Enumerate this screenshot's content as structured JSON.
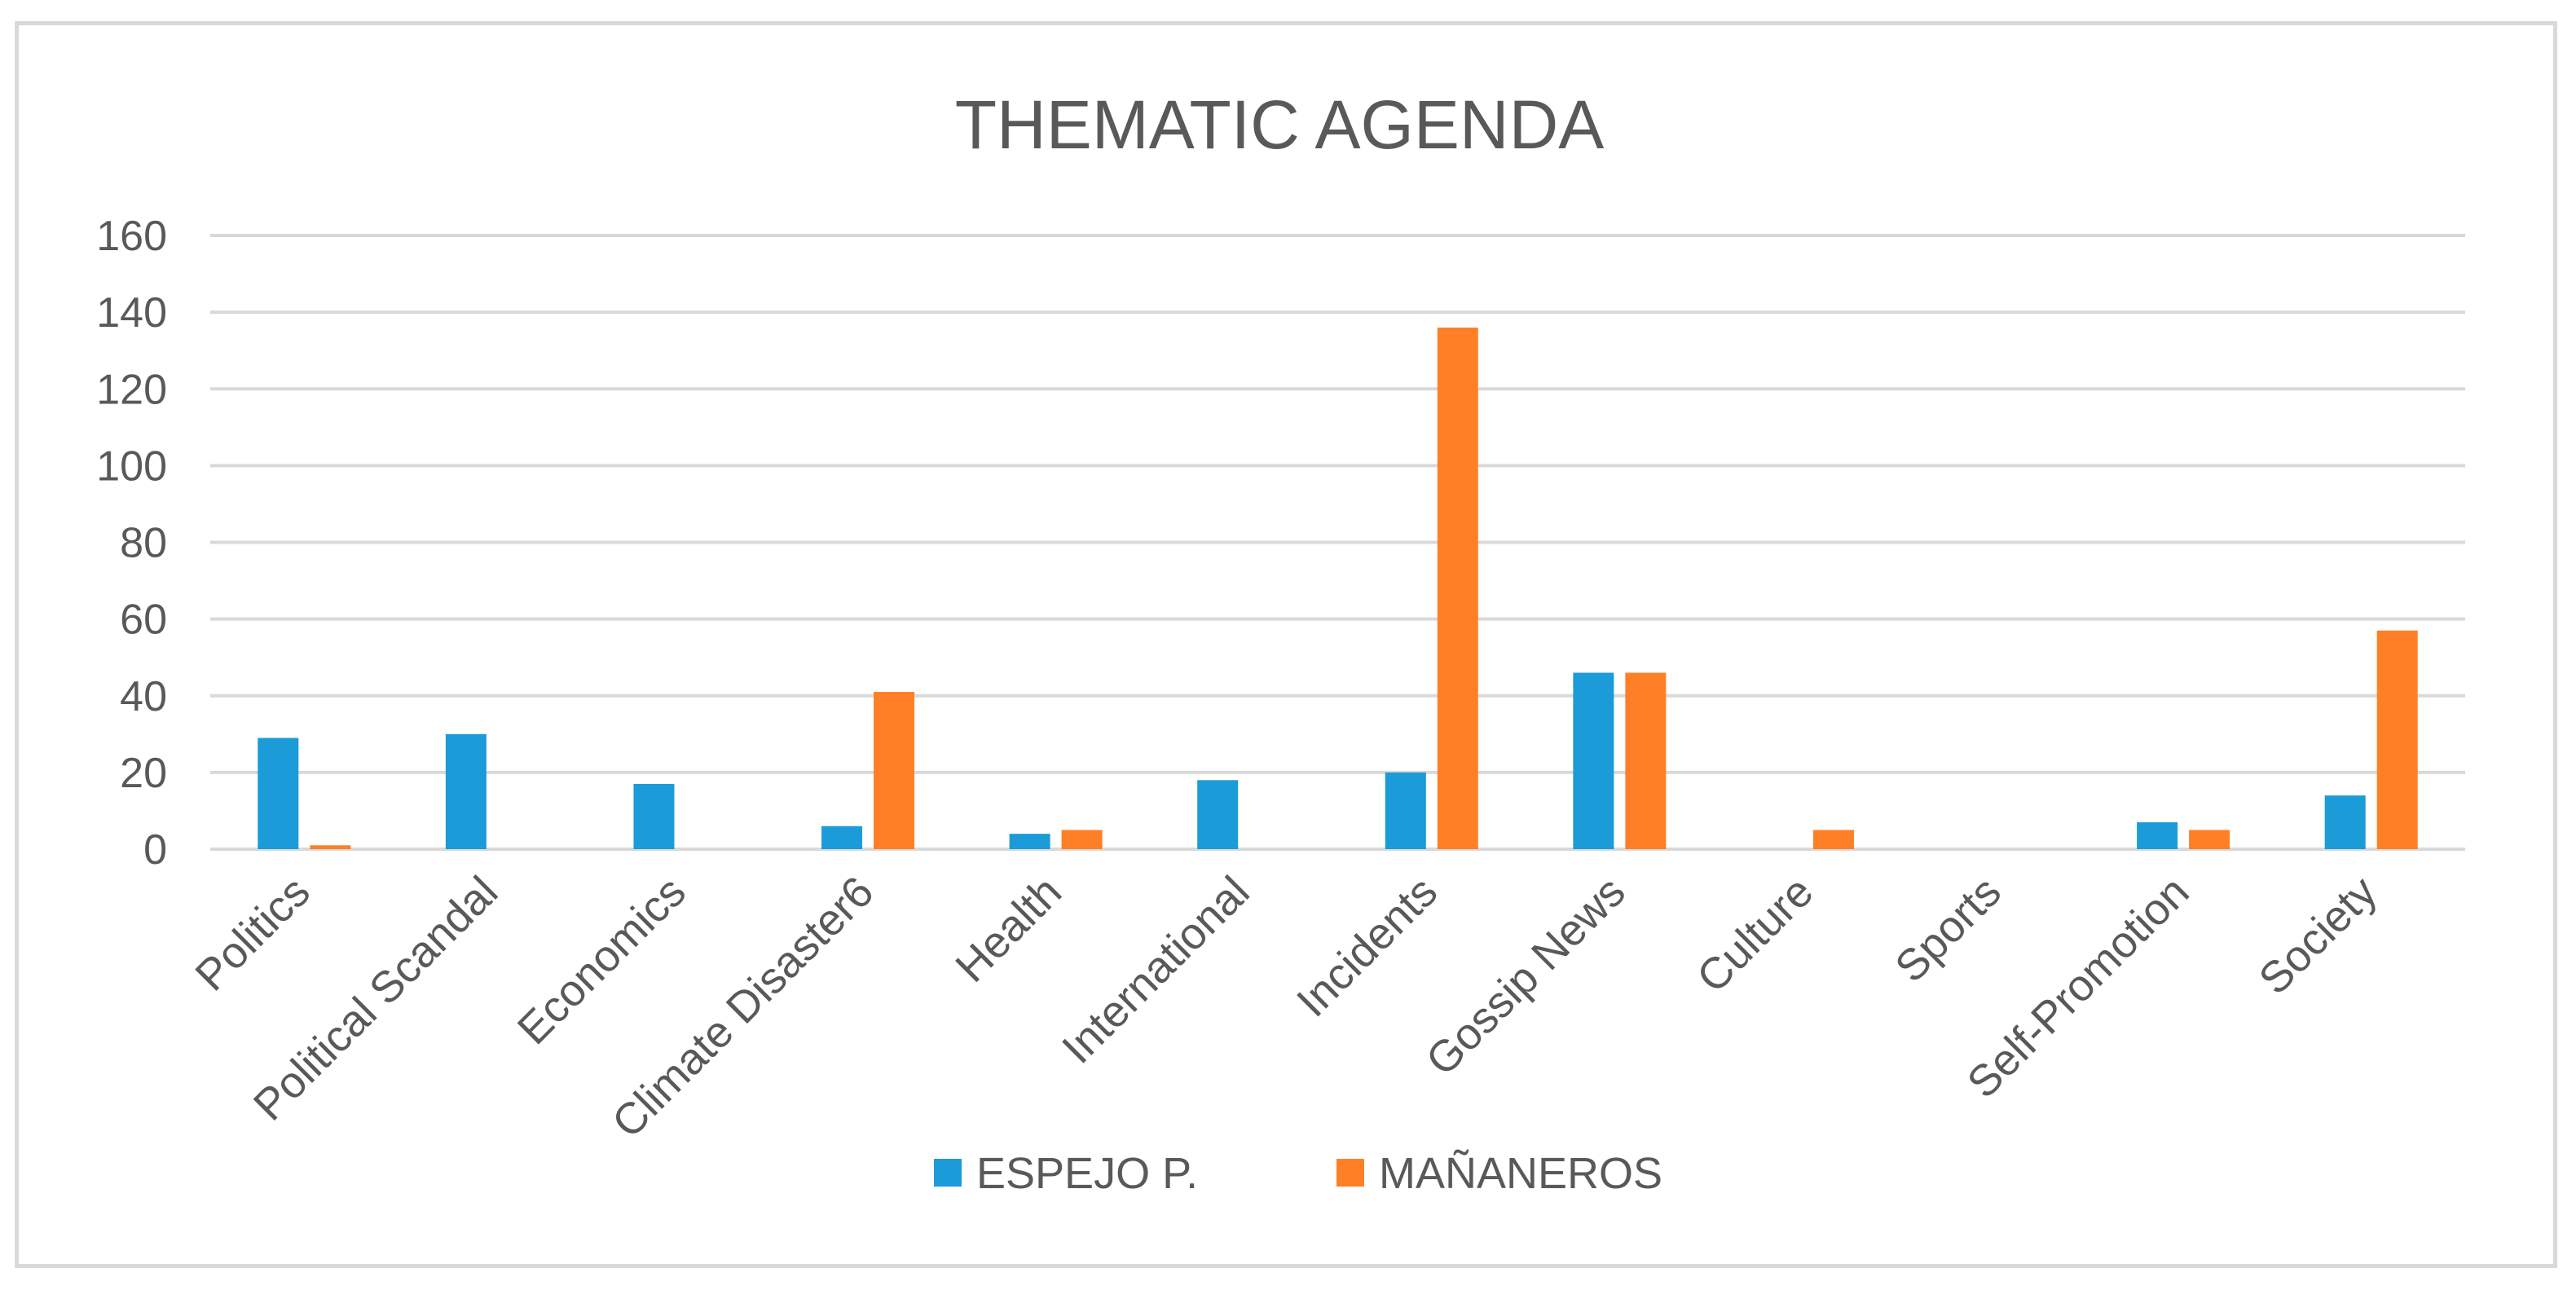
{
  "chart_data": {
    "type": "bar",
    "title": "THEMATIC AGENDA",
    "xlabel": "",
    "ylabel": "",
    "ylim": [
      0,
      160
    ],
    "yticks": [
      0,
      20,
      40,
      60,
      80,
      100,
      120,
      140,
      160
    ],
    "grid": true,
    "legend_position": "bottom",
    "categories": [
      "Politics",
      "Political Scandal",
      "Economics",
      "Climate Disaster6",
      "Health",
      "International",
      "Incidents",
      "Gossip News",
      "Culture",
      "Sports",
      "Self-Promotion",
      "Society"
    ],
    "series": [
      {
        "name": "ESPEJO P.",
        "color": "#1b9bd8",
        "values": [
          29,
          30,
          17,
          6,
          4,
          18,
          20,
          46,
          0,
          0,
          7,
          14
        ]
      },
      {
        "name": "MAÑANEROS",
        "color": "#ff7f27",
        "values": [
          1,
          0,
          0,
          41,
          5,
          0,
          136,
          46,
          5,
          0,
          5,
          57
        ]
      }
    ]
  }
}
